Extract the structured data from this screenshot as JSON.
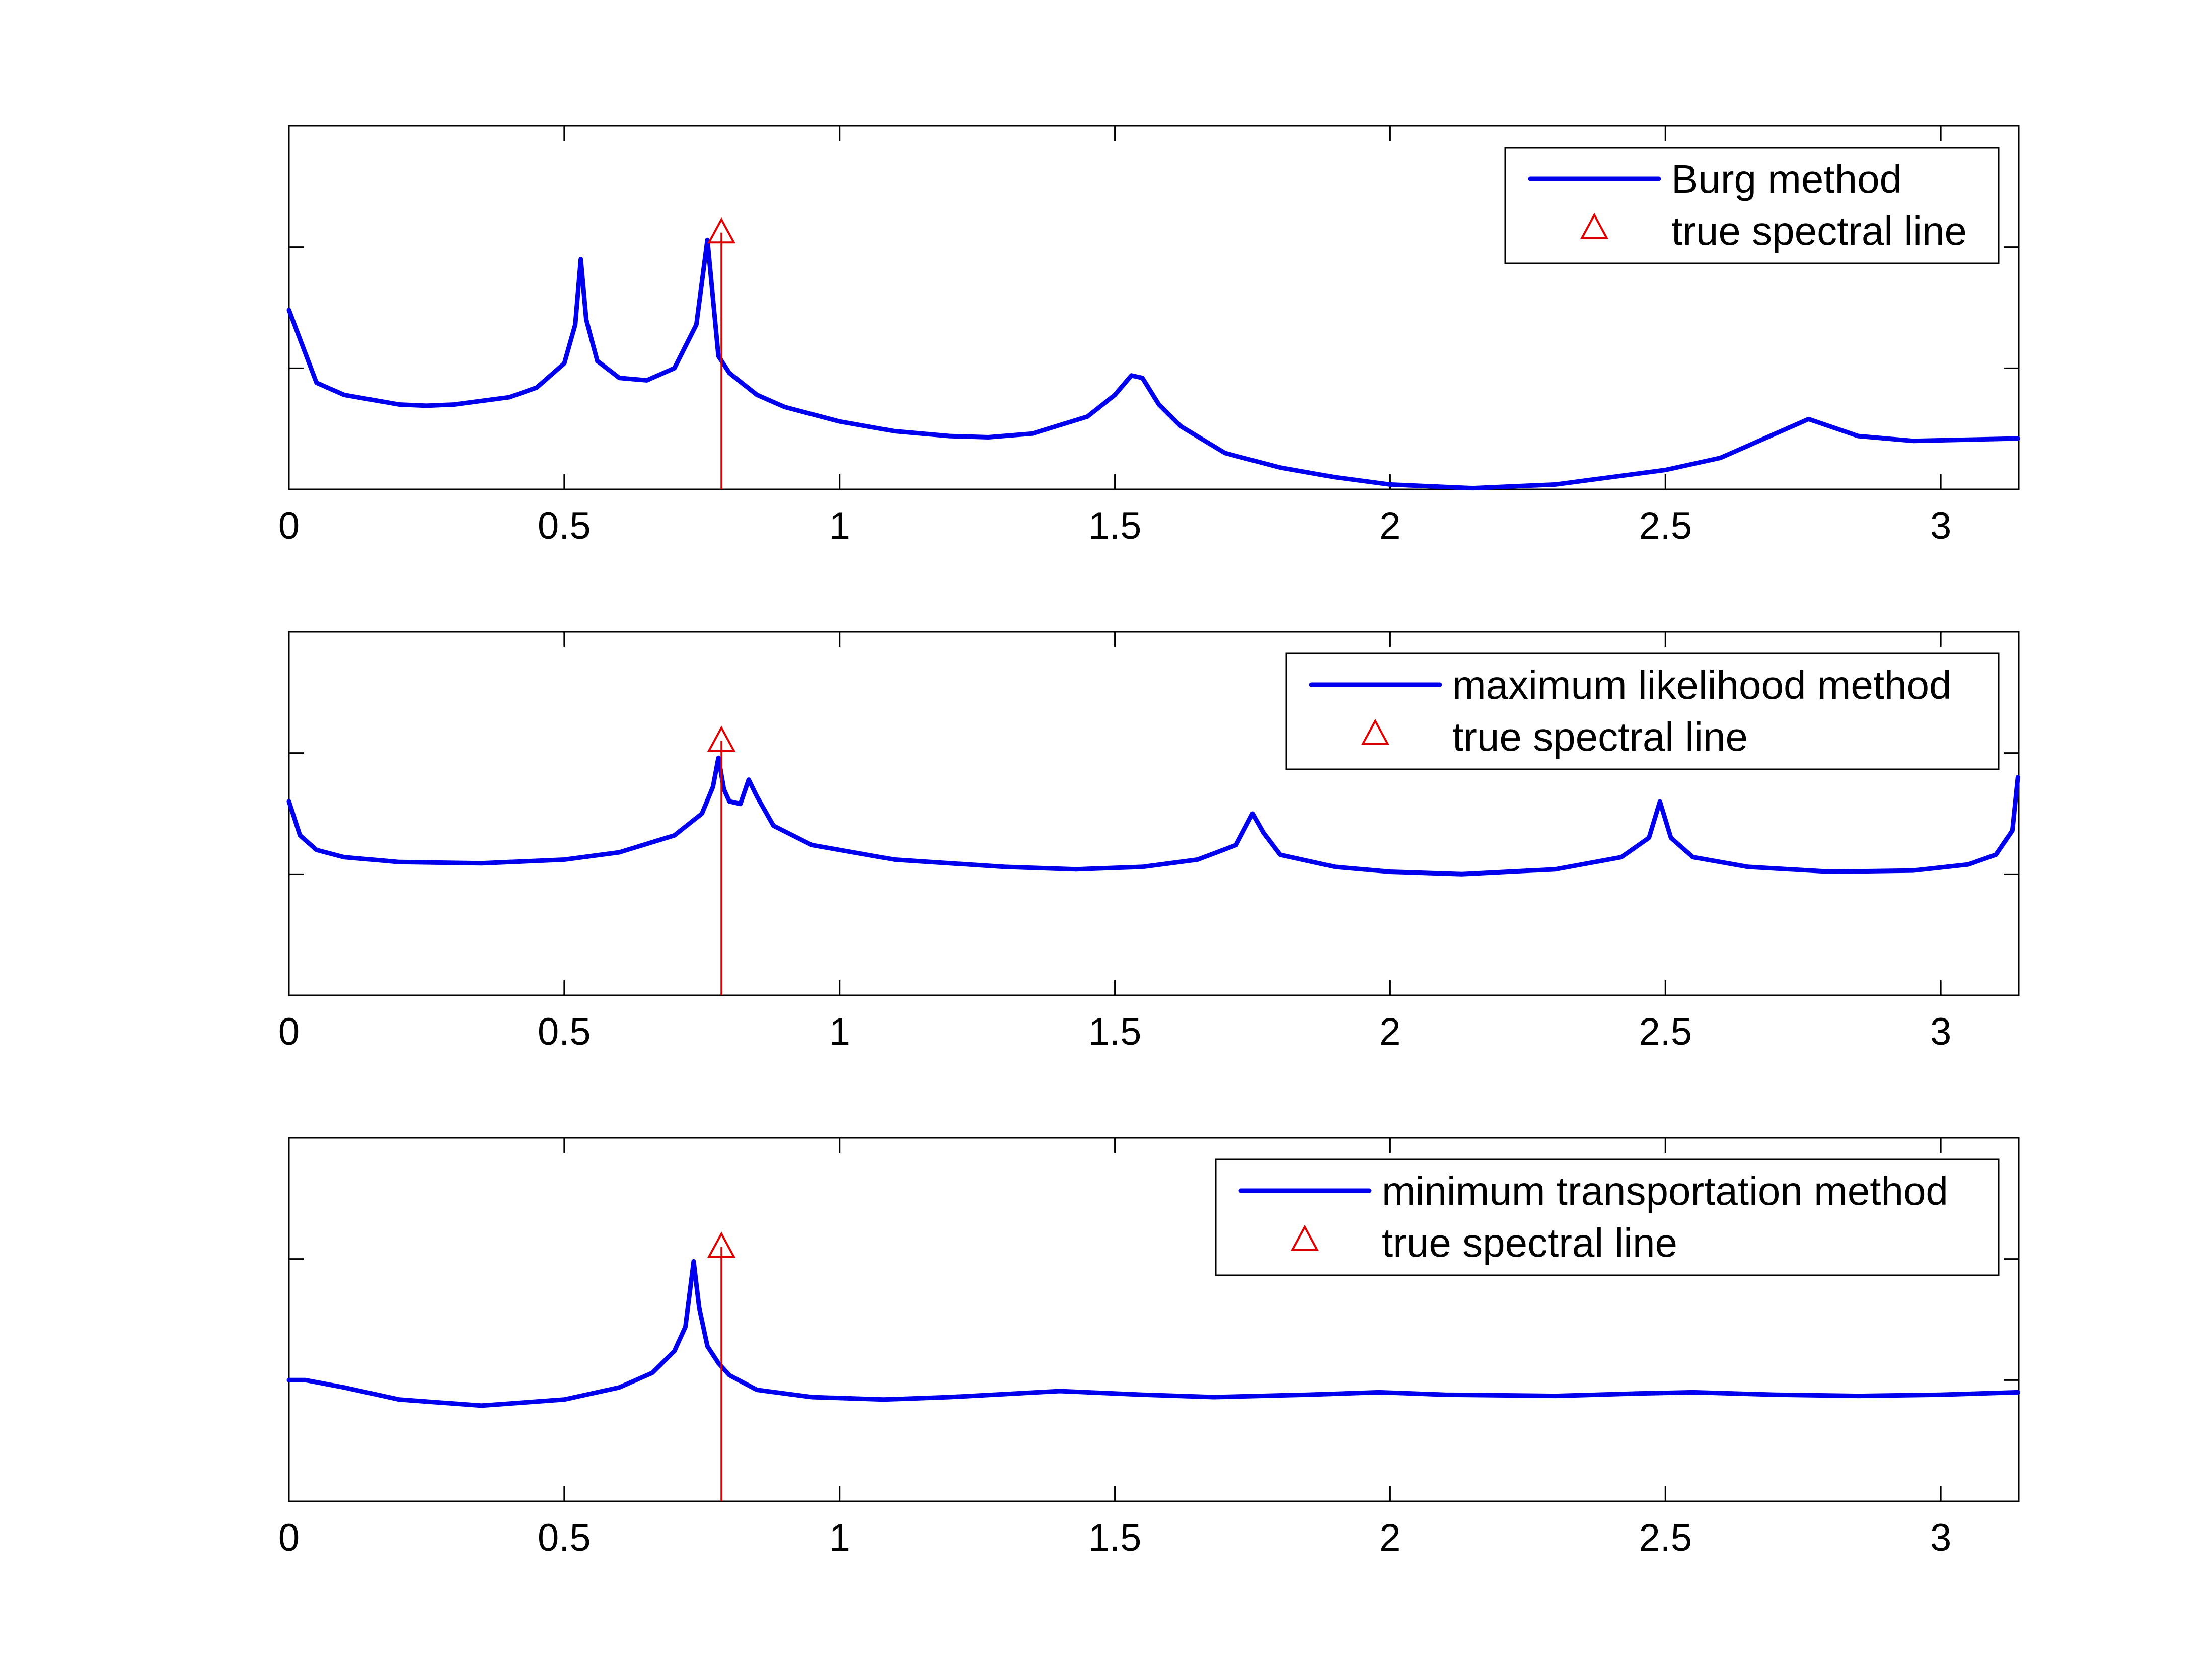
{
  "chart_data": [
    {
      "type": "line",
      "title": "",
      "xlabel": "",
      "ylabel": "",
      "xlim": [
        0,
        3.1416
      ],
      "ylim": [
        0,
        1.5
      ],
      "xticks": [
        0,
        0.5,
        1,
        1.5,
        2,
        2.5,
        3
      ],
      "xtick_labels": [
        "0",
        "0.5",
        "1",
        "1.5",
        "2",
        "2.5",
        "3"
      ],
      "yticks": [
        0.5,
        1.0
      ],
      "ytick_labels_shown": false,
      "legend_position": "top-right",
      "series": [
        {
          "name": "Burg method",
          "color": "#0000ee",
          "x": [
            0,
            0.05,
            0.1,
            0.2,
            0.25,
            0.3,
            0.4,
            0.45,
            0.5,
            0.52,
            0.53,
            0.54,
            0.56,
            0.6,
            0.65,
            0.7,
            0.74,
            0.76,
            0.78,
            0.8,
            0.85,
            0.9,
            1.0,
            1.1,
            1.2,
            1.27,
            1.35,
            1.45,
            1.5,
            1.53,
            1.55,
            1.58,
            1.62,
            1.7,
            1.8,
            1.9,
            2.0,
            2.15,
            2.3,
            2.5,
            2.6,
            2.7,
            2.76,
            2.85,
            2.95,
            3.05,
            3.14
          ],
          "values": [
            0.74,
            0.44,
            0.39,
            0.35,
            0.345,
            0.35,
            0.38,
            0.42,
            0.52,
            0.68,
            0.95,
            0.7,
            0.53,
            0.46,
            0.45,
            0.5,
            0.68,
            1.03,
            0.55,
            0.48,
            0.39,
            0.34,
            0.28,
            0.24,
            0.22,
            0.215,
            0.23,
            0.3,
            0.39,
            0.47,
            0.46,
            0.35,
            0.26,
            0.15,
            0.09,
            0.05,
            0.02,
            0.005,
            0.02,
            0.08,
            0.13,
            0.23,
            0.29,
            0.22,
            0.2,
            0.205,
            0.21
          ]
        },
        {
          "name": "true spectral line",
          "color": "#e00000",
          "x": [
            0.7854
          ],
          "values": [
            1.06
          ]
        }
      ],
      "legend": [
        "Burg method",
        "true spectral line"
      ]
    },
    {
      "type": "line",
      "title": "",
      "xlabel": "",
      "ylabel": "",
      "xlim": [
        0,
        3.1416
      ],
      "ylim": [
        0,
        1.5
      ],
      "xticks": [
        0,
        0.5,
        1,
        1.5,
        2,
        2.5,
        3
      ],
      "xtick_labels": [
        "0",
        "0.5",
        "1",
        "1.5",
        "2",
        "2.5",
        "3"
      ],
      "yticks": [
        0.5,
        1.0
      ],
      "ytick_labels_shown": false,
      "legend_position": "top-right",
      "series": [
        {
          "name": "maximum likelihood method",
          "color": "#0000ee",
          "x": [
            0,
            0.02,
            0.05,
            0.1,
            0.2,
            0.35,
            0.5,
            0.6,
            0.7,
            0.75,
            0.77,
            0.78,
            0.79,
            0.8,
            0.82,
            0.835,
            0.85,
            0.88,
            0.95,
            1.1,
            1.3,
            1.43,
            1.55,
            1.65,
            1.72,
            1.75,
            1.77,
            1.8,
            1.9,
            2.0,
            2.13,
            2.3,
            2.42,
            2.47,
            2.49,
            2.51,
            2.55,
            2.65,
            2.8,
            2.95,
            3.05,
            3.1,
            3.13,
            3.14
          ],
          "values": [
            0.8,
            0.66,
            0.6,
            0.57,
            0.55,
            0.545,
            0.56,
            0.59,
            0.66,
            0.75,
            0.86,
            0.98,
            0.85,
            0.8,
            0.79,
            0.89,
            0.82,
            0.7,
            0.62,
            0.56,
            0.53,
            0.52,
            0.53,
            0.56,
            0.62,
            0.75,
            0.67,
            0.58,
            0.53,
            0.51,
            0.5,
            0.52,
            0.57,
            0.65,
            0.8,
            0.65,
            0.57,
            0.53,
            0.51,
            0.515,
            0.54,
            0.58,
            0.68,
            0.9
          ]
        },
        {
          "name": "true spectral line",
          "color": "#e00000",
          "x": [
            0.7854
          ],
          "values": [
            1.05
          ]
        }
      ],
      "legend": [
        "maximum likelihood method",
        "true spectral line"
      ]
    },
    {
      "type": "line",
      "title": "",
      "xlabel": "",
      "ylabel": "",
      "xlim": [
        0,
        3.1416
      ],
      "ylim": [
        0,
        1.5
      ],
      "xticks": [
        0,
        0.5,
        1,
        1.5,
        2,
        2.5,
        3
      ],
      "xtick_labels": [
        "0",
        "0.5",
        "1",
        "1.5",
        "2",
        "2.5",
        "3"
      ],
      "yticks": [
        0.5,
        1.0
      ],
      "ytick_labels_shown": false,
      "legend_position": "top-right",
      "series": [
        {
          "name": "minimum transportation method",
          "color": "#0000ee",
          "x": [
            0,
            0.03,
            0.1,
            0.2,
            0.35,
            0.5,
            0.6,
            0.66,
            0.7,
            0.72,
            0.735,
            0.745,
            0.76,
            0.78,
            0.8,
            0.85,
            0.95,
            1.08,
            1.2,
            1.4,
            1.55,
            1.68,
            1.85,
            1.98,
            2.1,
            2.3,
            2.45,
            2.55,
            2.7,
            2.85,
            3.0,
            3.14
          ],
          "values": [
            0.5,
            0.5,
            0.47,
            0.42,
            0.395,
            0.42,
            0.47,
            0.53,
            0.62,
            0.72,
            0.99,
            0.8,
            0.64,
            0.57,
            0.52,
            0.46,
            0.43,
            0.42,
            0.43,
            0.455,
            0.44,
            0.43,
            0.44,
            0.45,
            0.44,
            0.435,
            0.445,
            0.45,
            0.44,
            0.435,
            0.44,
            0.45
          ]
        },
        {
          "name": "true spectral line",
          "color": "#e00000",
          "x": [
            0.7854
          ],
          "values": [
            1.05
          ]
        }
      ],
      "legend": [
        "minimum transportation method",
        "true spectral line"
      ]
    }
  ]
}
